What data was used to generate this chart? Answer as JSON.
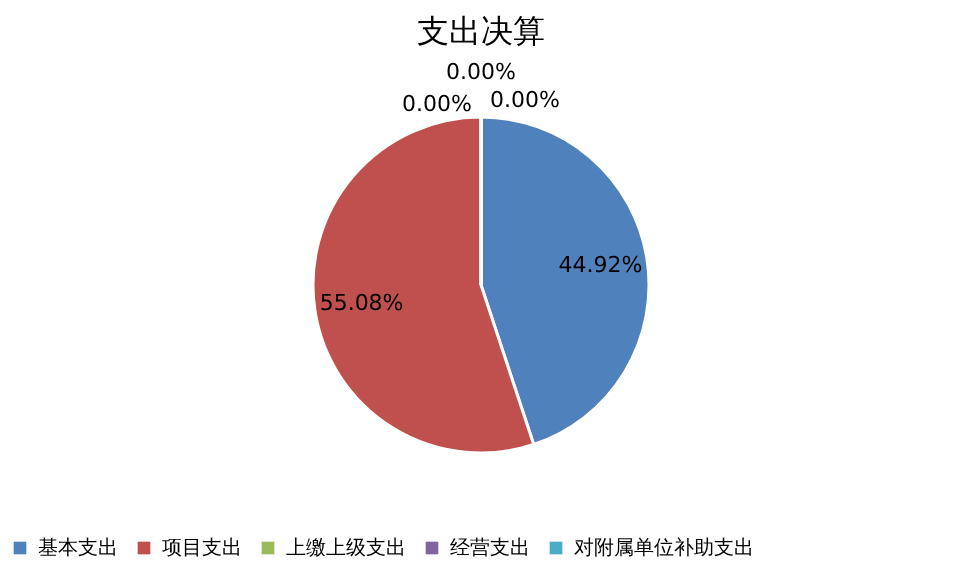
{
  "chart_data": {
    "type": "pie",
    "title": "支出决算",
    "categories": [
      "基本支出",
      "项目支出",
      "上缴上级支出",
      "经营支出",
      "对附属单位补助支出"
    ],
    "values": [
      44.92,
      55.08,
      0,
      0,
      0
    ],
    "colors": [
      "#4f81bd",
      "#c0504d",
      "#9bbb59",
      "#8064a2",
      "#4bacc6"
    ],
    "value_labels": [
      "44.92%",
      "55.08%",
      "0.00%",
      "0.00%",
      "0.00%"
    ],
    "legend": "bottom"
  }
}
